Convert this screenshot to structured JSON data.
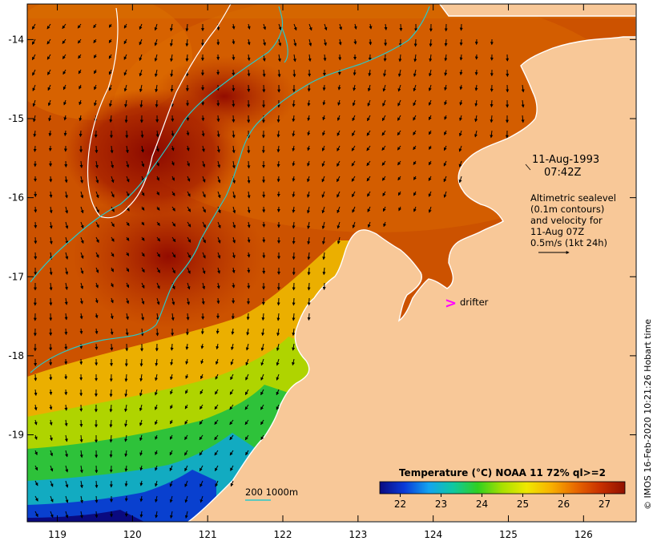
{
  "map": {
    "x_axis": {
      "min": 118.6,
      "max": 126.7,
      "ticks": [
        119,
        120,
        121,
        122,
        123,
        124,
        125,
        126
      ]
    },
    "y_axis": {
      "min": -20.1,
      "max": -13.55,
      "ticks": [
        -14,
        -15,
        -16,
        -17,
        -18,
        -19
      ]
    },
    "land_color": "#f8c898",
    "background_sst_color": "#c85000"
  },
  "annotations": {
    "date": "11-Aug-1993",
    "time": "07:42Z",
    "altimetry_lines": [
      "Altimetric sealevel",
      "(0.1m contours)",
      "and velocity for",
      "11-Aug 07Z",
      "0.5m/s (1kt 24h)"
    ],
    "drifter_symbol": ">",
    "drifter_label": "drifter",
    "drifter_color": "#ff00ff",
    "bathymetry_label": "200  1000m",
    "bathymetry_color": "#2ac8c8",
    "credit": "© IMOS 16-Feb-2020 10:21:26 Hobart time"
  },
  "colorbar": {
    "title": "Temperature (°C) NOAA 11 72% ql>=2",
    "min": 21.5,
    "max": 27.5,
    "ticks": [
      "22",
      "23",
      "24",
      "25",
      "26",
      "27"
    ],
    "tick_values": [
      22,
      23,
      24,
      25,
      26,
      27
    ],
    "colors": [
      "#0a0a80",
      "#0a3ad8",
      "#13a4f0",
      "#10c8a0",
      "#30d020",
      "#a8e000",
      "#f0e800",
      "#f8b000",
      "#e86800",
      "#c83000",
      "#901000"
    ]
  }
}
